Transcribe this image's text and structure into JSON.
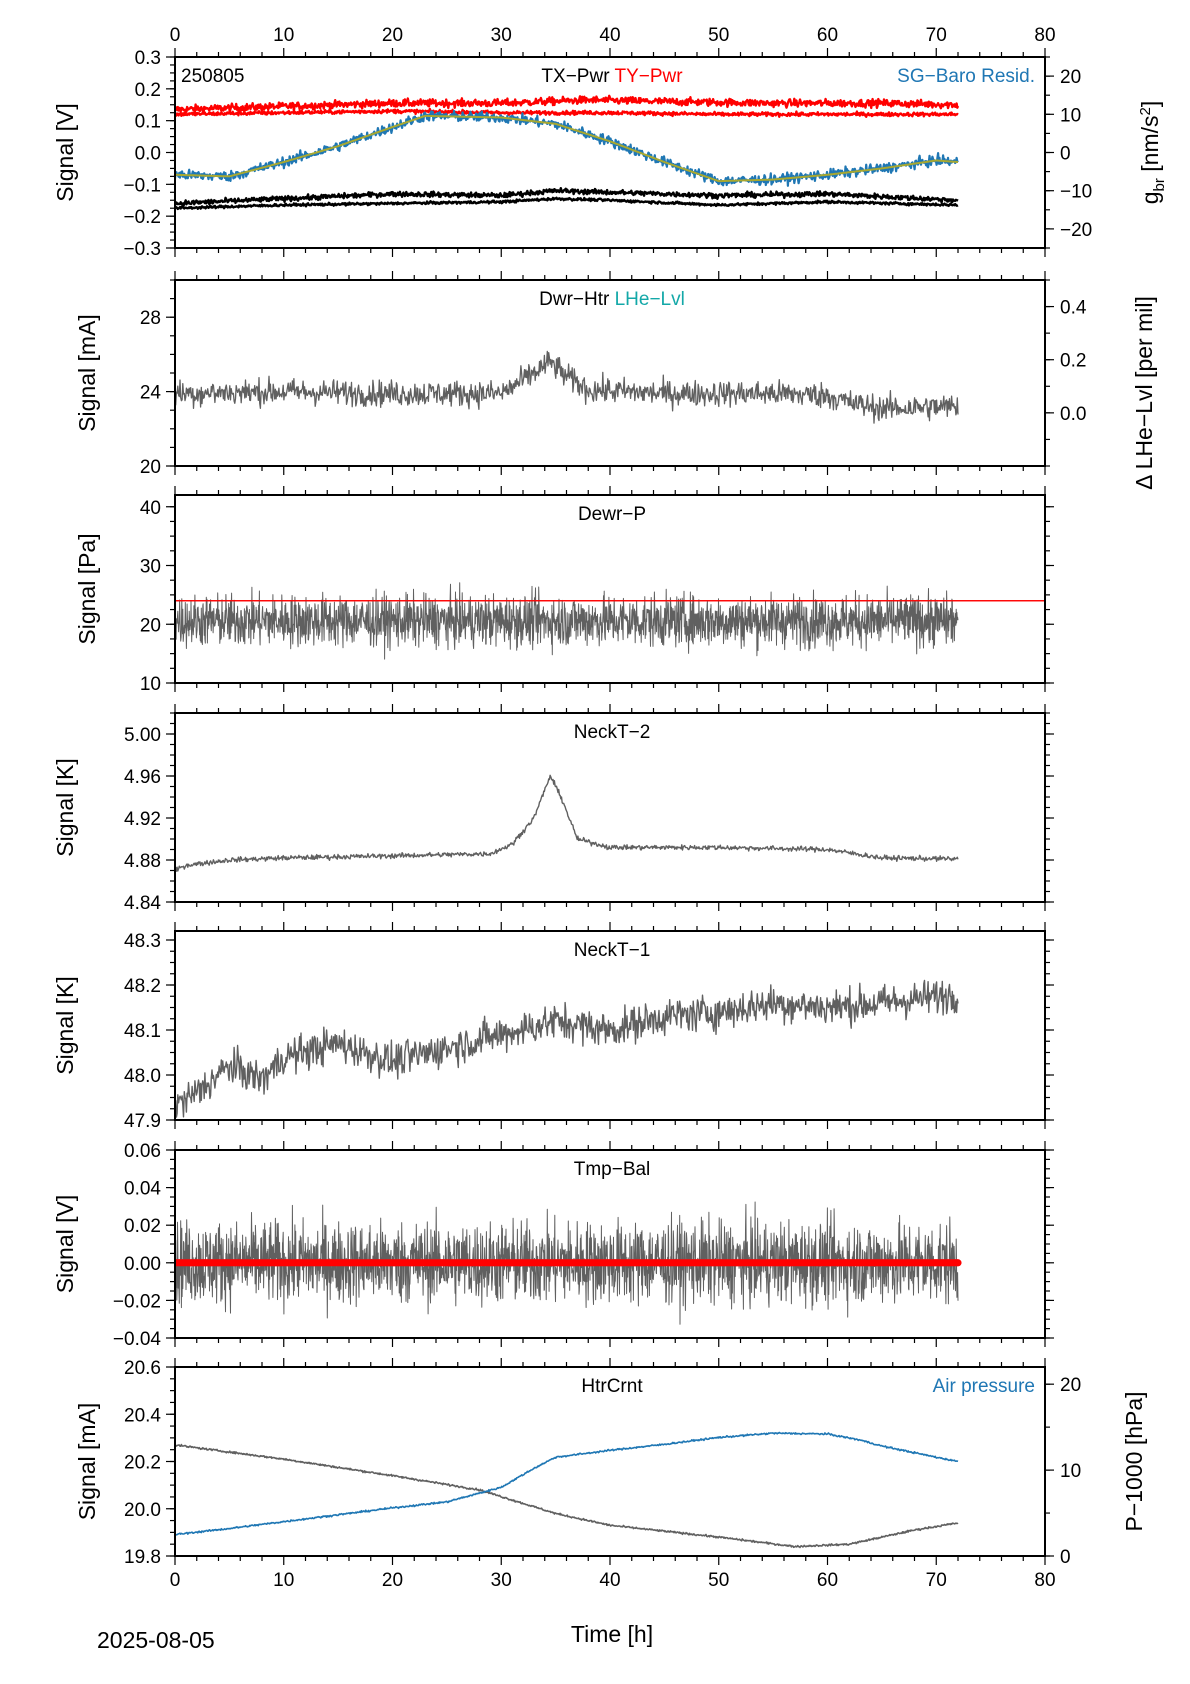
{
  "figure": {
    "date": "2025-08-05",
    "xlabel": "Time [h]",
    "xlim": [
      0,
      80
    ],
    "xticks": [
      0,
      10,
      20,
      30,
      40,
      50,
      60,
      70,
      80
    ],
    "colors": {
      "dark": "#606060",
      "red": "#ff0000",
      "blue": "#1f77b4",
      "teal": "#13a8a8",
      "olive": "#a8a830",
      "black": "#000000"
    }
  },
  "chart_data": [
    {
      "id": "p1",
      "type": "line",
      "corner_label": "250805",
      "titles": [
        {
          "text": "TX−Pwr",
          "color": "#000000"
        },
        {
          "text": "TY−Pwr",
          "color": "#ff0000"
        }
      ],
      "right_title": {
        "text": "SG−Baro Resid.",
        "color": "#1f77b4"
      },
      "ylabel": "Signal [V]",
      "ylim": [
        -0.3,
        0.3
      ],
      "yticks": [
        -0.3,
        -0.2,
        -0.1,
        0.0,
        0.1,
        0.2,
        0.3
      ],
      "ytick_labels": [
        "−0.3",
        "−0.2",
        "−0.1",
        "0.0",
        "0.1",
        "0.2",
        "0.3"
      ],
      "y2label_main": "g",
      "y2label_sub": "br",
      "y2label_rest": " [nm/s",
      "y2label_sup": "2",
      "y2label_end": "]",
      "y2lim": [
        -25,
        25
      ],
      "y2ticks": [
        -20,
        -10,
        0,
        10,
        20
      ],
      "y2tick_labels": [
        "−20",
        "−10",
        "0",
        "10",
        "20"
      ],
      "series": [
        {
          "color": "#ff0000",
          "width": 2.4,
          "noise": 0.006,
          "x": [
            0,
            10,
            20,
            30,
            38,
            45,
            55,
            65,
            72
          ],
          "y": [
            0.135,
            0.145,
            0.155,
            0.155,
            0.165,
            0.16,
            0.155,
            0.155,
            0.15
          ]
        },
        {
          "color": "#ff0000",
          "width": 2.4,
          "noise": 0.003,
          "x": [
            0,
            10,
            20,
            30,
            40,
            50,
            60,
            72
          ],
          "y": [
            0.12,
            0.125,
            0.13,
            0.125,
            0.125,
            0.12,
            0.12,
            0.12
          ]
        },
        {
          "color": "#1f77b4",
          "width": 2.2,
          "noise": 0.008,
          "x": [
            0,
            5,
            10,
            15,
            20,
            23,
            30,
            35,
            40,
            45,
            50,
            55,
            60,
            65,
            70,
            72
          ],
          "y": [
            -0.07,
            -0.075,
            -0.03,
            0.02,
            0.08,
            0.115,
            0.11,
            0.09,
            0.035,
            -0.03,
            -0.09,
            -0.085,
            -0.07,
            -0.05,
            -0.025,
            -0.03
          ]
        },
        {
          "color": "#a8a830",
          "width": 2.0,
          "noise": 0.0,
          "x": [
            0,
            5,
            10,
            15,
            20,
            23,
            30,
            35,
            40,
            45,
            50,
            55,
            60,
            65,
            70,
            72
          ],
          "y": [
            -0.07,
            -0.075,
            -0.03,
            0.02,
            0.08,
            0.115,
            0.11,
            0.09,
            0.035,
            -0.03,
            -0.09,
            -0.085,
            -0.07,
            -0.05,
            -0.025,
            -0.03
          ]
        },
        {
          "color": "#000000",
          "width": 2.4,
          "noise": 0.004,
          "x": [
            0,
            10,
            20,
            30,
            35,
            40,
            50,
            60,
            72
          ],
          "y": [
            -0.16,
            -0.145,
            -0.13,
            -0.135,
            -0.12,
            -0.125,
            -0.135,
            -0.13,
            -0.15
          ]
        },
        {
          "color": "#000000",
          "width": 2.4,
          "noise": 0.002,
          "x": [
            0,
            10,
            20,
            30,
            35,
            40,
            50,
            60,
            72
          ],
          "y": [
            -0.175,
            -0.165,
            -0.16,
            -0.155,
            -0.145,
            -0.15,
            -0.165,
            -0.155,
            -0.165
          ]
        }
      ]
    },
    {
      "id": "p2",
      "type": "line",
      "titles": [
        {
          "text": "Dwr−Htr",
          "color": "#000000"
        },
        {
          "text": "LHe−Lvl",
          "color": "#13a8a8"
        }
      ],
      "ylabel": "Signal [mA]",
      "ylim": [
        20,
        30
      ],
      "yticks": [
        20,
        24,
        28
      ],
      "ytick_labels": [
        "20",
        "24",
        "28"
      ],
      "y2label": "Δ LHe−Lvl [per mil]",
      "y2lim": [
        -0.2,
        0.5
      ],
      "y2ticks": [
        0.0,
        0.2,
        0.4
      ],
      "y2tick_labels": [
        "0.0",
        "0.2",
        "0.4"
      ],
      "series": [
        {
          "color": "#606060",
          "width": 1.3,
          "noise": 0.35,
          "x": [
            0,
            10,
            20,
            30,
            32,
            34.5,
            36,
            38,
            45,
            55,
            60,
            62,
            65,
            72
          ],
          "y": [
            23.9,
            24.0,
            23.9,
            23.9,
            24.6,
            25.6,
            24.8,
            24.1,
            23.9,
            23.9,
            23.8,
            23.4,
            23.1,
            23.2
          ]
        }
      ]
    },
    {
      "id": "p3",
      "type": "line",
      "titles": [
        {
          "text": "Dewr−P",
          "color": "#000000"
        }
      ],
      "ylabel": "Signal [Pa]",
      "ylim": [
        10,
        42
      ],
      "yticks": [
        10,
        20,
        30,
        40
      ],
      "ytick_labels": [
        "10",
        "20",
        "30",
        "40"
      ],
      "hline": {
        "y": 24,
        "color": "#ff0000"
      },
      "series": [
        {
          "color": "#606060",
          "width": 1.0,
          "noise": 2.2,
          "x": [
            0,
            72
          ],
          "y": [
            20.6,
            20.6
          ]
        }
      ]
    },
    {
      "id": "p4",
      "type": "line",
      "titles": [
        {
          "text": "NeckT−2",
          "color": "#000000"
        }
      ],
      "ylabel": "Signal [K]",
      "ylim": [
        4.84,
        5.02
      ],
      "yticks": [
        4.84,
        4.88,
        4.92,
        4.96,
        5.0
      ],
      "ytick_labels": [
        "4.84",
        "4.88",
        "4.92",
        "4.96",
        "5.00"
      ],
      "series": [
        {
          "color": "#606060",
          "width": 1.4,
          "noise": 0.0012,
          "x": [
            0,
            1,
            5,
            10,
            20,
            29,
            31,
            33,
            34.5,
            35.5,
            37,
            40,
            50,
            60,
            65,
            72
          ],
          "y": [
            4.87,
            4.875,
            4.88,
            4.882,
            4.884,
            4.886,
            4.895,
            4.92,
            4.96,
            4.94,
            4.9,
            4.892,
            4.892,
            4.89,
            4.882,
            4.881
          ]
        }
      ]
    },
    {
      "id": "p5",
      "type": "line",
      "titles": [
        {
          "text": "NeckT−1",
          "color": "#000000"
        }
      ],
      "ylabel": "Signal [K]",
      "ylim": [
        47.9,
        48.32
      ],
      "yticks": [
        47.9,
        48.0,
        48.1,
        48.2,
        48.3
      ],
      "ytick_labels": [
        "47.9",
        "48.0",
        "48.1",
        "48.2",
        "48.3"
      ],
      "series": [
        {
          "color": "#606060",
          "width": 1.4,
          "noise": 0.02,
          "x": [
            0,
            2,
            5,
            8,
            10,
            15,
            20,
            25,
            30,
            35,
            40,
            45,
            50,
            55,
            60,
            65,
            72
          ],
          "y": [
            47.93,
            47.96,
            48.02,
            47.99,
            48.04,
            48.07,
            48.03,
            48.06,
            48.09,
            48.12,
            48.1,
            48.13,
            48.14,
            48.16,
            48.15,
            48.16,
            48.18
          ]
        }
      ]
    },
    {
      "id": "p6",
      "type": "line",
      "titles": [
        {
          "text": "Tmp−Bal",
          "color": "#000000"
        }
      ],
      "ylabel": "Signal [V]",
      "ylim": [
        -0.04,
        0.06
      ],
      "yticks": [
        -0.04,
        -0.02,
        0.0,
        0.02,
        0.04,
        0.06
      ],
      "ytick_labels": [
        "−0.04",
        "−0.02",
        "0.00",
        "0.02",
        "0.04",
        "0.06"
      ],
      "hline": {
        "y": 0.0,
        "color": "#ff0000",
        "width": 7,
        "x_end": 72
      },
      "series": [
        {
          "color": "#606060",
          "width": 1.0,
          "noise": 0.011,
          "x": [
            0,
            72
          ],
          "y": [
            0.0,
            0.0
          ]
        }
      ]
    },
    {
      "id": "p7",
      "type": "line",
      "titles": [
        {
          "text": "HtrCrnt",
          "color": "#000000"
        }
      ],
      "right_title": {
        "text": "Air pressure",
        "color": "#1f77b4"
      },
      "ylabel": "Signal [mA]",
      "ylim": [
        19.8,
        20.6
      ],
      "yticks": [
        19.8,
        20.0,
        20.2,
        20.4,
        20.6
      ],
      "ytick_labels": [
        "19.8",
        "20.0",
        "20.2",
        "20.4",
        "20.6"
      ],
      "y2label": "P−1000 [hPa]",
      "y2label_color": "#1f77b4",
      "y2lim": [
        0,
        22
      ],
      "y2ticks": [
        0,
        10,
        20
      ],
      "y2tick_labels": [
        "0",
        "10",
        "20"
      ],
      "series": [
        {
          "color": "#606060",
          "width": 1.6,
          "noise": 0.002,
          "axis": "left",
          "x": [
            0,
            10,
            20,
            28,
            35,
            40,
            50,
            57,
            62,
            68,
            72
          ],
          "y": [
            20.27,
            20.21,
            20.14,
            20.08,
            19.98,
            19.93,
            19.88,
            19.84,
            19.85,
            19.91,
            19.94
          ]
        },
        {
          "color": "#1f77b4",
          "width": 1.6,
          "noise": 0.05,
          "axis": "right",
          "x": [
            0,
            5,
            10,
            15,
            20,
            25,
            30,
            33,
            35,
            40,
            45,
            50,
            55,
            60,
            63,
            65,
            70,
            72
          ],
          "y": [
            2.5,
            3.2,
            4.0,
            4.8,
            5.6,
            6.3,
            8.0,
            10.2,
            11.5,
            12.3,
            13.0,
            13.8,
            14.3,
            14.2,
            13.5,
            12.8,
            11.5,
            11.0
          ]
        }
      ]
    }
  ]
}
